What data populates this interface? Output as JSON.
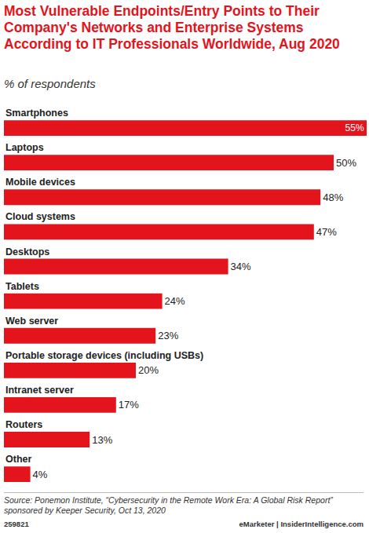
{
  "chart_data": {
    "type": "bar",
    "orientation": "horizontal",
    "title": "Most Vulnerable Endpoints/Entry Points to Their Company's Networks and Enterprise Systems According to IT Professionals Worldwide, Aug 2020",
    "subtitle": "% of respondents",
    "categories": [
      "Smartphones",
      "Laptops",
      "Mobile devices",
      "Cloud systems",
      "Desktops",
      "Tablets",
      "Web server",
      "Portable storage devices (including USBs)",
      "Intranet server",
      "Routers",
      "Other"
    ],
    "values": [
      55,
      50,
      48,
      47,
      34,
      24,
      23,
      20,
      17,
      13,
      4
    ],
    "value_labels": [
      "55%",
      "50%",
      "48%",
      "47%",
      "34%",
      "24%",
      "23%",
      "20%",
      "17%",
      "13%",
      "4%"
    ],
    "color": "#e3141c",
    "data_labels": true,
    "xlim": [
      0,
      55
    ],
    "tick_labels": false,
    "grid": false,
    "source": "Source: Ponemon Institute, “Cybersecurity in the Remote Work Era: A Global Risk Report” sponsored by Keeper Security, Oct 13, 2020",
    "chart_id": "259821",
    "credits": "eMarketer | InsiderIntelligence.com"
  }
}
